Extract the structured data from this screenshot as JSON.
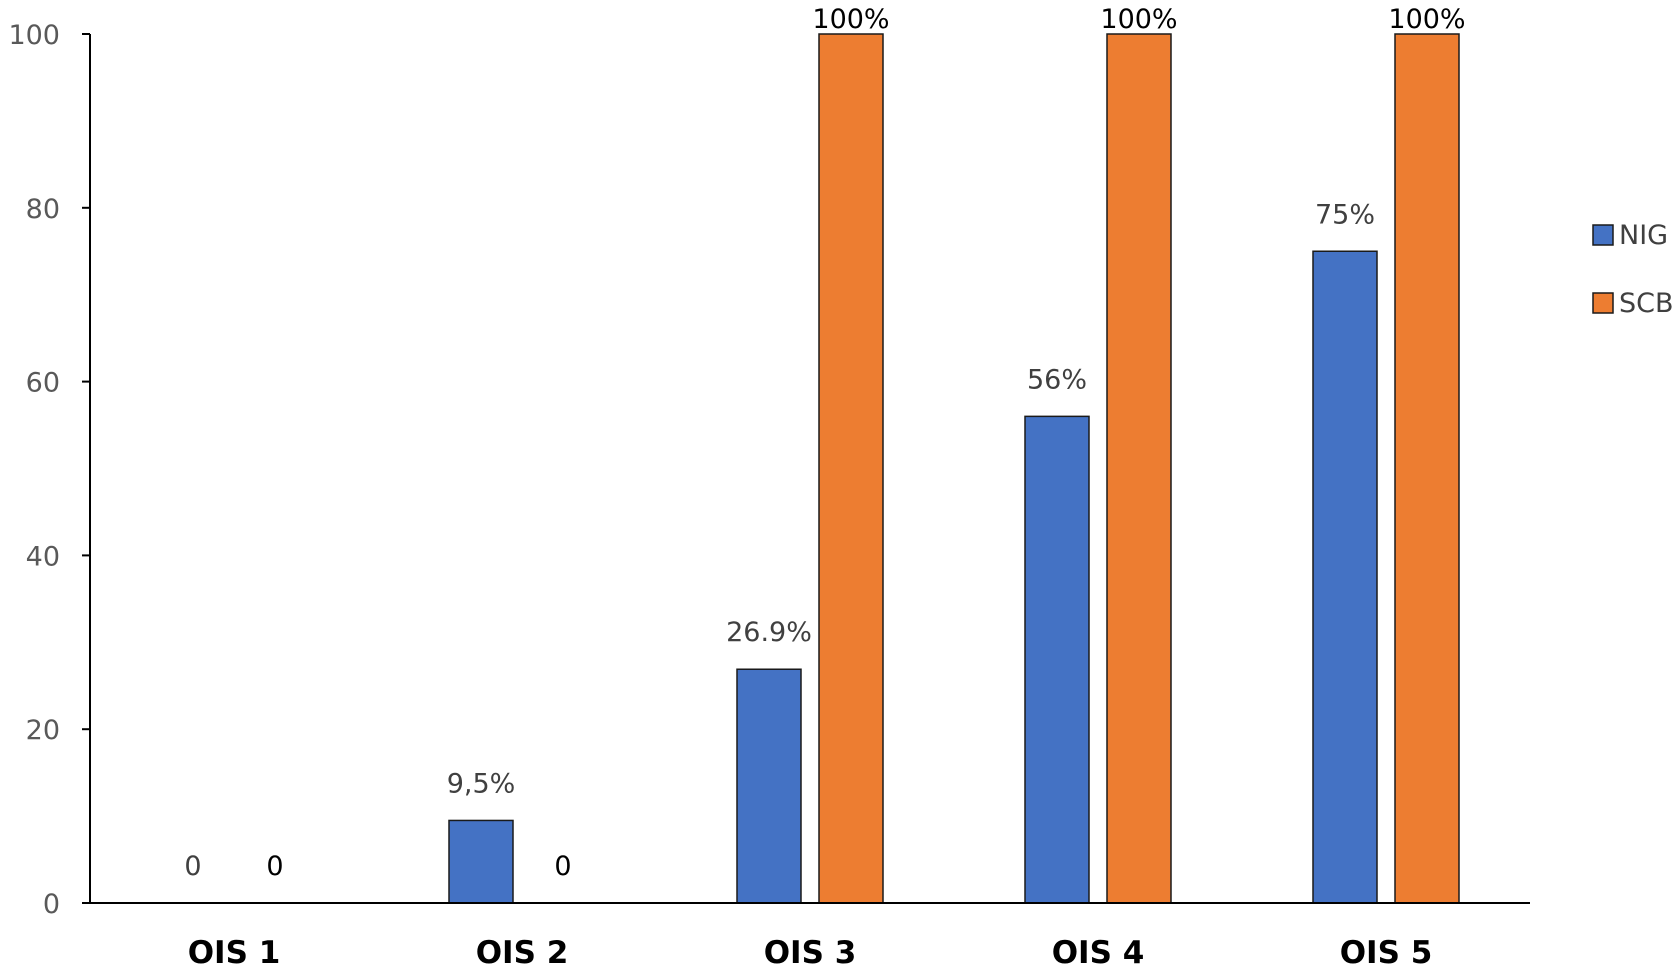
{
  "chart_data": {
    "type": "bar",
    "categories": [
      "OIS 1",
      "OIS 2",
      "OIS 3",
      "OIS 4",
      "OIS 5"
    ],
    "series": [
      {
        "name": "NIG",
        "color": "#4472C4",
        "values": [
          0,
          9.5,
          26.9,
          56,
          75
        ],
        "labels": [
          "0",
          "9,5%",
          "26.9%",
          "56%",
          "75%"
        ]
      },
      {
        "name": "SCB",
        "color": "#ED7D31",
        "values": [
          0,
          0,
          100,
          100,
          100
        ],
        "labels": [
          "0",
          "0",
          "100%",
          "100%",
          "100%"
        ]
      }
    ],
    "yticks": [
      "0",
      "20",
      "40",
      "60",
      "80",
      "100"
    ],
    "ylim": [
      0,
      100
    ],
    "grid": false,
    "legend": "right"
  }
}
